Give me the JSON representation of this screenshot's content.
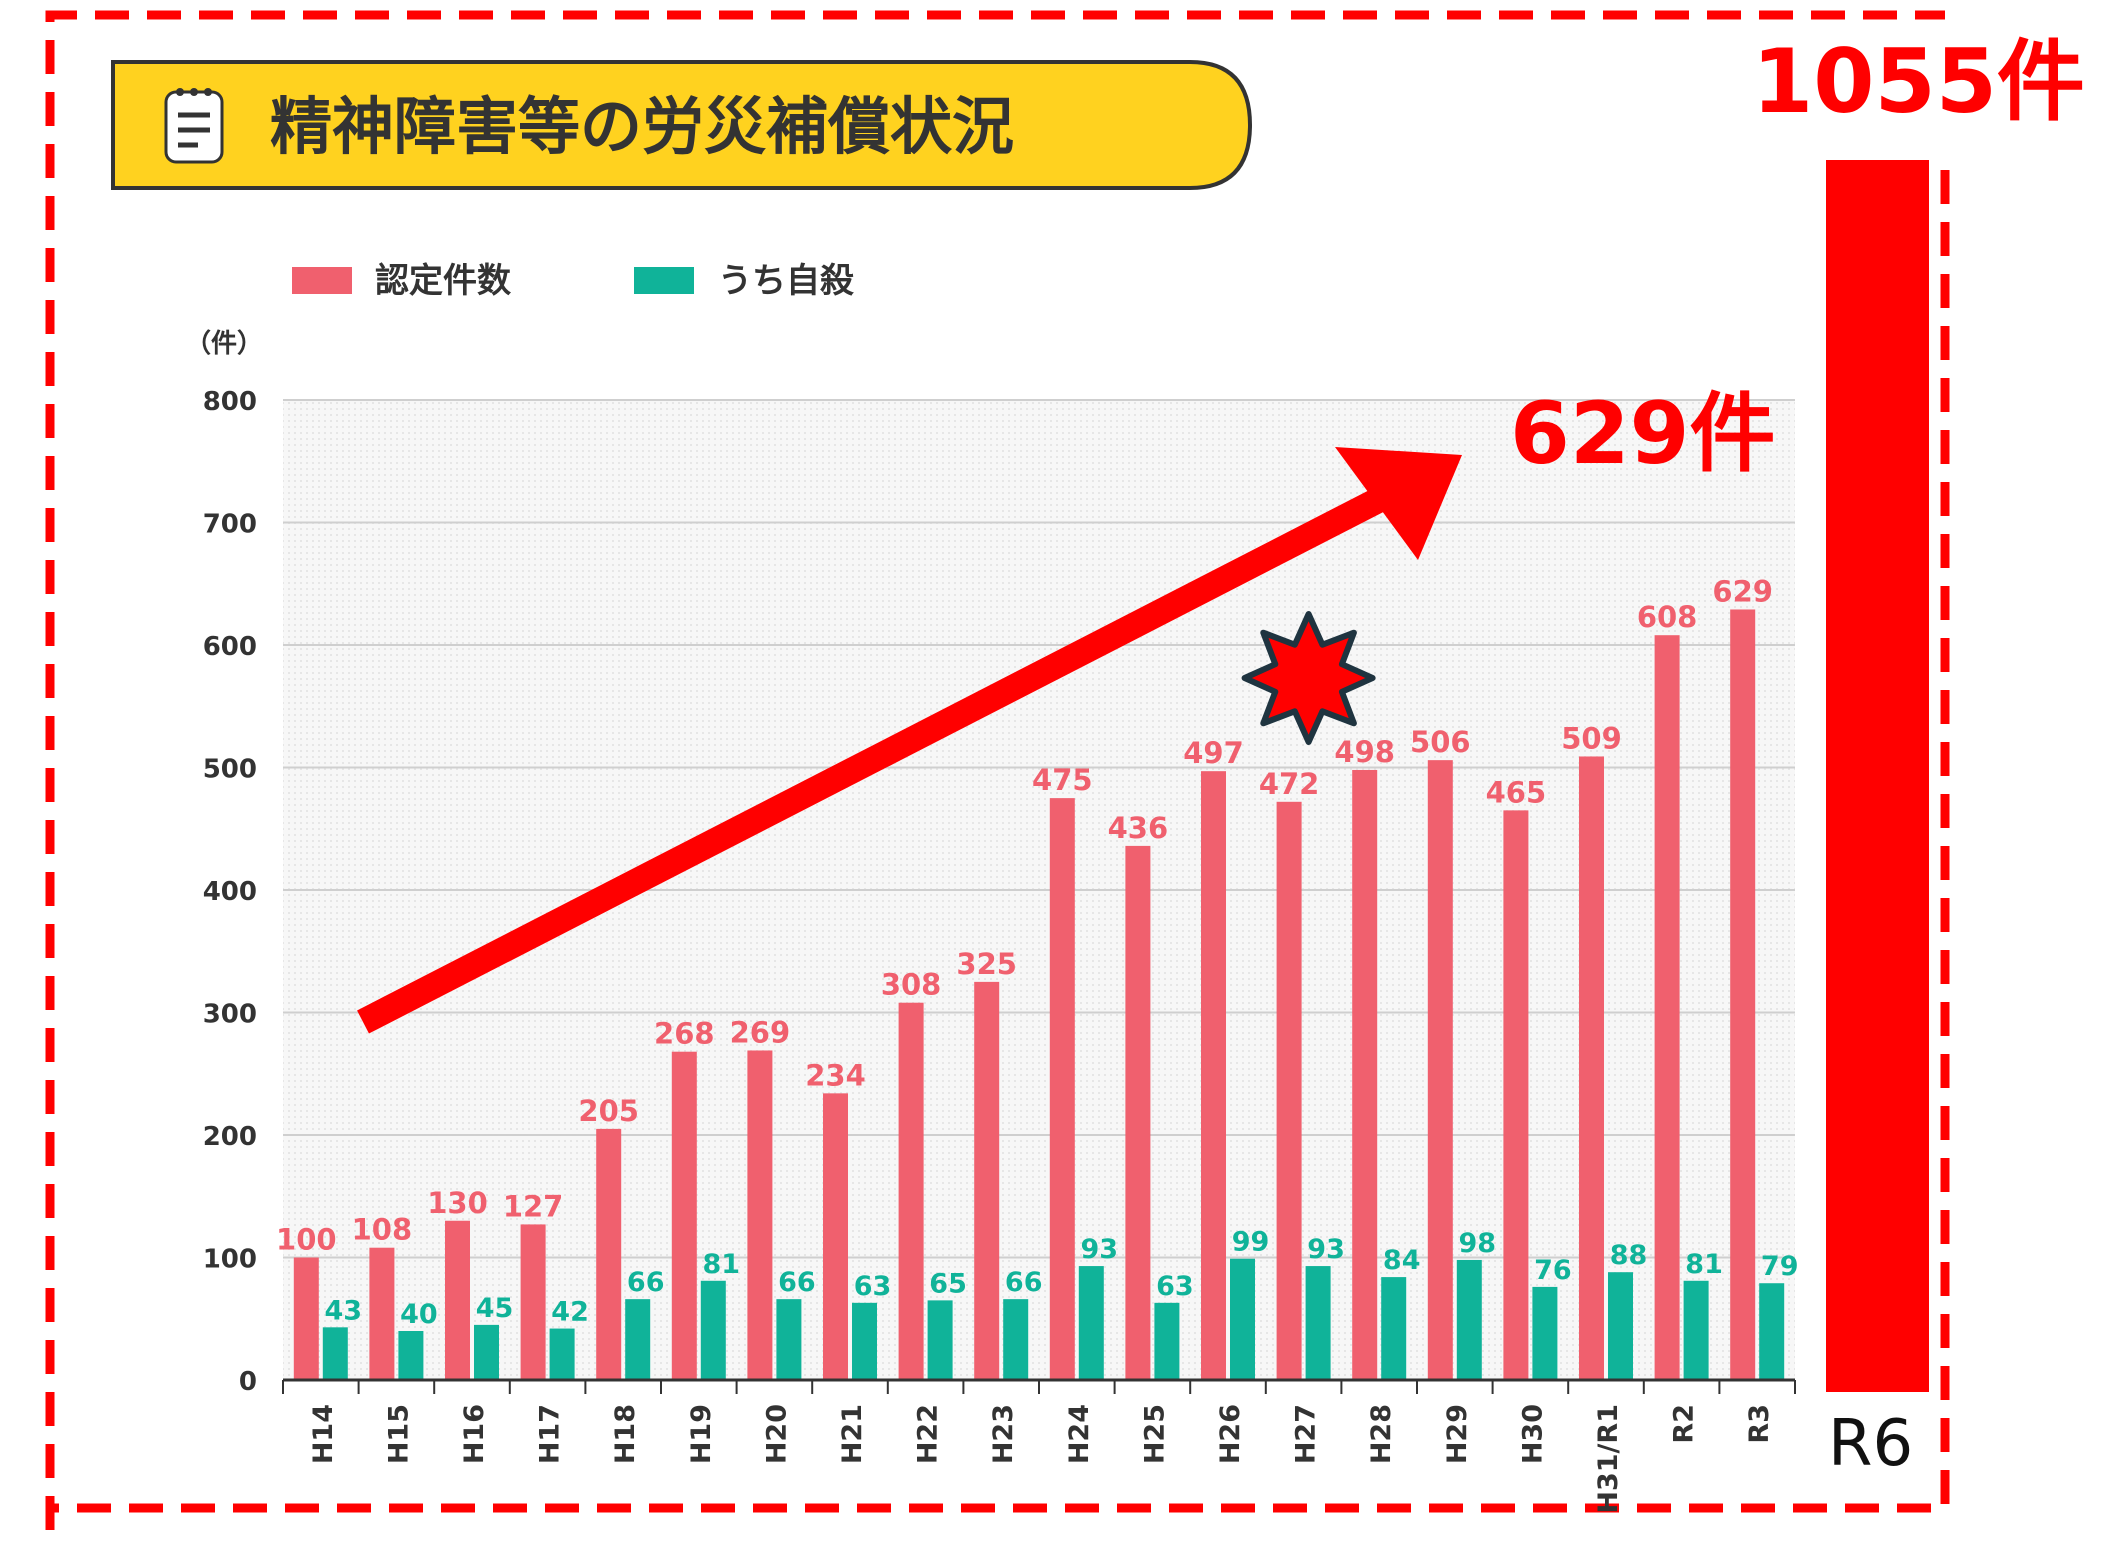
{
  "title": "精神障害等の労災補償状況",
  "legend": [
    {
      "label": "認定件数",
      "color": "#f0606e"
    },
    {
      "label": "うち自殺",
      "color": "#10b399"
    }
  ],
  "y_unit": "（件）",
  "annotations": {
    "arrow_label": "629件",
    "r6_value_label": "1055件",
    "r6_category": "R6",
    "r6_value": 1055,
    "r6_color": "#ff0000",
    "starburst_category": "H27"
  },
  "chart_data": {
    "type": "bar",
    "categories": [
      "H14",
      "H15",
      "H16",
      "H17",
      "H18",
      "H19",
      "H20",
      "H21",
      "H22",
      "H23",
      "H24",
      "H25",
      "H26",
      "H27",
      "H28",
      "H29",
      "H30",
      "H31/R1",
      "R2",
      "R3"
    ],
    "series": [
      {
        "name": "認定件数",
        "values": [
          100,
          108,
          130,
          127,
          205,
          268,
          269,
          234,
          308,
          325,
          475,
          436,
          497,
          472,
          498,
          506,
          465,
          509,
          608,
          629
        ]
      },
      {
        "name": "うち自殺",
        "values": [
          43,
          40,
          45,
          42,
          66,
          81,
          66,
          63,
          65,
          66,
          93,
          63,
          99,
          93,
          84,
          98,
          76,
          88,
          81,
          79
        ]
      }
    ],
    "ylabel": "（件）",
    "ylim": [
      0,
      800
    ],
    "yticks": [
      0,
      100,
      200,
      300,
      400,
      500,
      600,
      700,
      800
    ],
    "grid": true,
    "legend_position": "top-left"
  }
}
